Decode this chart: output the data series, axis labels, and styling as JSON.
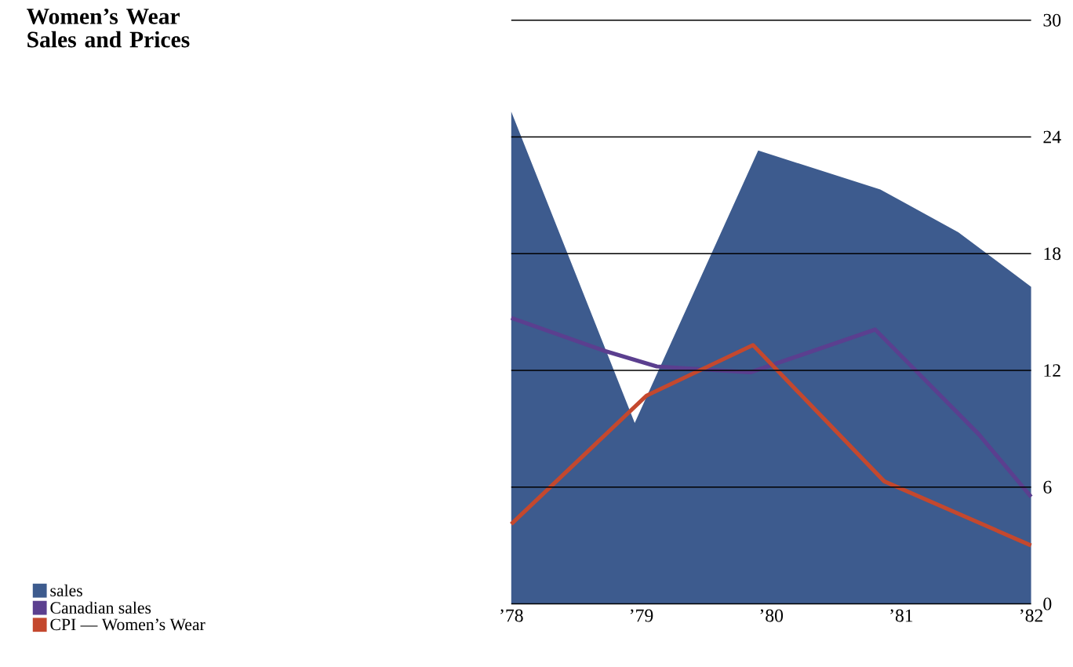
{
  "chart_data": {
    "type": "line",
    "title": "Women’s Wear Sales and Prices",
    "xlim": [
      1978,
      1982
    ],
    "ylim": [
      0,
      30
    ],
    "xticks": [
      {
        "value": 1978,
        "label": "’78"
      },
      {
        "value": 1979,
        "label": "’79"
      },
      {
        "value": 1980,
        "label": "’80"
      },
      {
        "value": 1981,
        "label": "’81"
      },
      {
        "value": 1982,
        "label": "’82"
      }
    ],
    "yticks": [
      0,
      6,
      12,
      18,
      24,
      30
    ],
    "grid": "y",
    "legend": "bottom left",
    "series": [
      {
        "name": "sales",
        "type": "area",
        "color": "#3d5b8e",
        "x": [
          1978,
          1978.95,
          1979.9,
          1980.84,
          1981.44,
          1982
        ],
        "values": [
          25.3,
          9.3,
          23.3,
          21.3,
          19.1,
          16.3
        ]
      },
      {
        "name": "Canadian sales",
        "color": "#5b3f8f",
        "x": [
          1978,
          1978.72,
          1979.12,
          1979.84,
          1980.8,
          1981.6,
          1982
        ],
        "values": [
          14.7,
          13.0,
          12.2,
          11.9,
          14.1,
          8.7,
          5.5
        ]
      },
      {
        "name": "CPI — Women’s Wear",
        "color": "#c4482e",
        "x": [
          1978,
          1979.04,
          1979.86,
          1980.87,
          1982
        ],
        "values": [
          4.1,
          10.7,
          13.3,
          6.3,
          3.0
        ]
      }
    ]
  }
}
